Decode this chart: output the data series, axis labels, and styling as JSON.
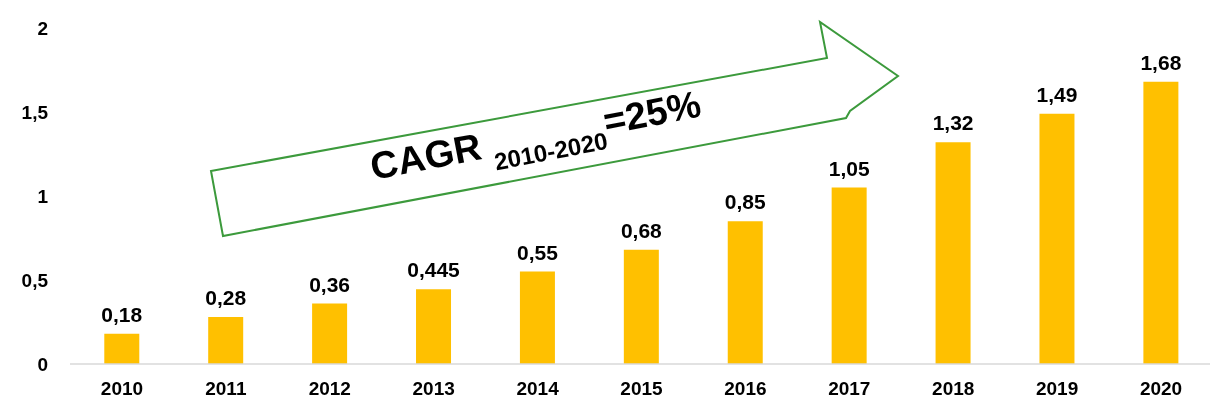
{
  "chart_data": {
    "type": "bar",
    "categories": [
      "2010",
      "2011",
      "2012",
      "2013",
      "2014",
      "2015",
      "2016",
      "2017",
      "2018",
      "2019",
      "2020"
    ],
    "values": [
      0.18,
      0.28,
      0.36,
      0.445,
      0.55,
      0.68,
      0.85,
      1.05,
      1.32,
      1.49,
      1.68
    ],
    "value_labels": [
      "0,18",
      "0,28",
      "0,36",
      "0,445",
      "0,55",
      "0,68",
      "0,85",
      "1,05",
      "1,32",
      "1,49",
      "1,68"
    ],
    "color": "#ffc000",
    "ylim": [
      0,
      2
    ],
    "yticks": [
      0,
      {
        "value": 0.5,
        "label": "0,5"
      },
      1,
      {
        "value": 1.5,
        "label": "1,5"
      },
      2
    ],
    "grid": false,
    "legend": false,
    "annotations": [
      "CAGR $_{2010-2020}$=25%"
    ]
  }
}
